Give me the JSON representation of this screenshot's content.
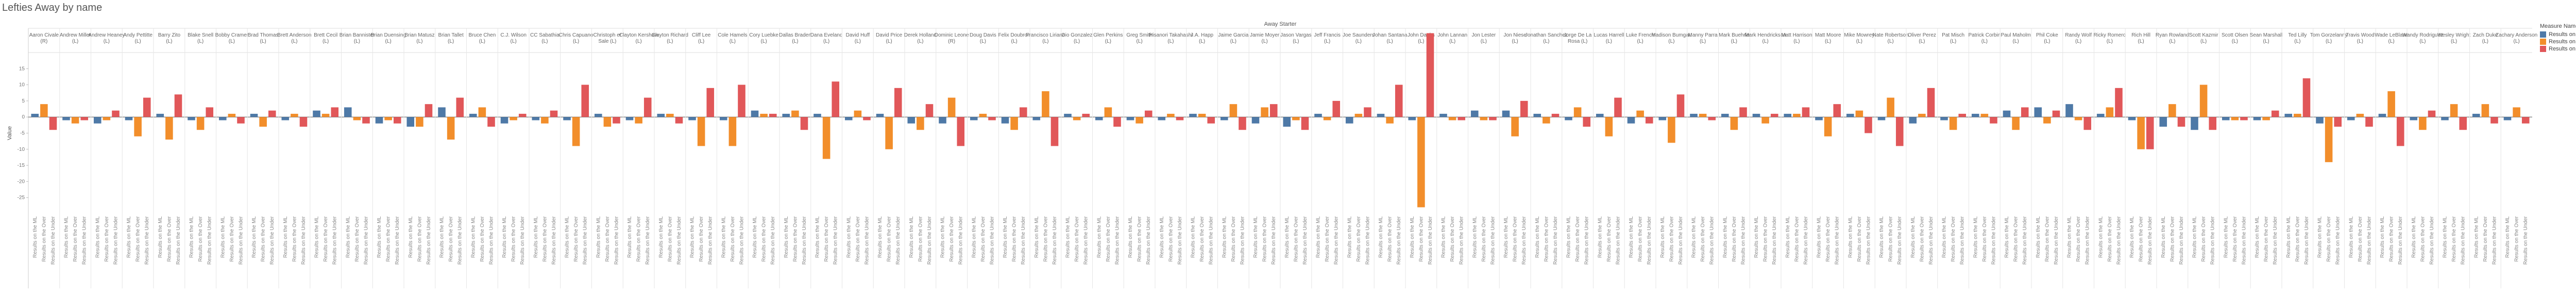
{
  "chart_data": {
    "type": "bar",
    "title": "Lefties Away by name",
    "top_axis_label": "Away Starter",
    "ylabel": "Value",
    "ylim": [
      -30,
      20
    ],
    "y_ticks": [
      -25,
      -20,
      -15,
      -10,
      -5,
      0,
      5,
      10,
      15
    ],
    "grid": false,
    "legend": {
      "title": "Measure Names",
      "placement": "right",
      "entries": [
        {
          "name": "Results on the ML",
          "color": "#4e79a7"
        },
        {
          "name": "Results on the Over",
          "color": "#f28e2b"
        },
        {
          "name": "Results on the Under",
          "color": "#e15759"
        }
      ]
    },
    "x_label_prefix": "Results on the ",
    "categories": [
      {
        "name": "Aaron Civale (R)",
        "bars": [
          1,
          4,
          -4
        ]
      },
      {
        "name": "Andrew Miller (L)",
        "bars": [
          -1,
          -2,
          -1
        ]
      },
      {
        "name": "Andrew Heaney (L)",
        "bars": [
          -2,
          -1,
          2
        ]
      },
      {
        "name": "Andy Pettitte (L)",
        "bars": [
          -1,
          -6,
          6
        ]
      },
      {
        "name": "Barry Zito (L)",
        "bars": [
          1,
          -7,
          7
        ]
      },
      {
        "name": "Blake Snell (L)",
        "bars": [
          -1,
          -4,
          3
        ]
      },
      {
        "name": "Bobby Cramer (L)",
        "bars": [
          -1,
          1,
          -2
        ]
      },
      {
        "name": "Brad Thomas (L)",
        "bars": [
          1,
          -3,
          2
        ]
      },
      {
        "name": "Brett Anderson (L)",
        "bars": [
          -1,
          1,
          -3
        ]
      },
      {
        "name": "Brett Cecil (L)",
        "bars": [
          2,
          1,
          3
        ]
      },
      {
        "name": "Brian Bannister (L)",
        "bars": [
          3,
          -1,
          -2
        ]
      },
      {
        "name": "Brian Duensing (L)",
        "bars": [
          -2,
          -1,
          -2
        ]
      },
      {
        "name": "Brian Matusz (L)",
        "bars": [
          -3,
          -3,
          4
        ]
      },
      {
        "name": "Brian Tallet (L)",
        "bars": [
          3,
          -7,
          6
        ]
      },
      {
        "name": "Bruce Chen (L)",
        "bars": [
          1,
          3,
          -3
        ]
      },
      {
        "name": "C.J. Wilson (L)",
        "bars": [
          -2,
          -1,
          1
        ]
      },
      {
        "name": "CC Sabathia (L)",
        "bars": [
          -1,
          -2,
          2
        ]
      },
      {
        "name": "Chris Capuano (L)",
        "bars": [
          -1,
          -9,
          10
        ]
      },
      {
        "name": "Christoph er Sale (L)",
        "bars": [
          1,
          -3,
          -2
        ]
      },
      {
        "name": "Clayton Kershaw (L)",
        "bars": [
          -1,
          -2,
          6
        ]
      },
      {
        "name": "Clayton Richard (L)",
        "bars": [
          1,
          1,
          -2
        ]
      },
      {
        "name": "Cliff Lee (L)",
        "bars": [
          -1,
          -9,
          9
        ]
      },
      {
        "name": "Cole Hamels (L)",
        "bars": [
          -1,
          -9,
          10
        ]
      },
      {
        "name": "Cory Luebke (L)",
        "bars": [
          2,
          1,
          1
        ]
      },
      {
        "name": "Dallas Braden (L)",
        "bars": [
          1,
          2,
          -4
        ]
      },
      {
        "name": "Dana Eveland (L)",
        "bars": [
          1,
          -13,
          11
        ]
      },
      {
        "name": "David Huff (L)",
        "bars": [
          -1,
          2,
          -1
        ]
      },
      {
        "name": "David Price (L)",
        "bars": [
          1,
          -10,
          9
        ]
      },
      {
        "name": "Derek Holland (L)",
        "bars": [
          -2,
          -4,
          4
        ]
      },
      {
        "name": "Dominic Leone (R)",
        "bars": [
          -2,
          6,
          -9
        ]
      },
      {
        "name": "Doug Davis (L)",
        "bars": [
          -1,
          1,
          -1
        ]
      },
      {
        "name": "Felix Doubron (L)",
        "bars": [
          -2,
          -4,
          3
        ]
      },
      {
        "name": "Francisco Liriano (L)",
        "bars": [
          -1,
          8,
          -9
        ]
      },
      {
        "name": "Gio Gonzalez (L)",
        "bars": [
          1,
          -1,
          1
        ]
      },
      {
        "name": "Glen Perkins (L)",
        "bars": [
          -1,
          3,
          -3
        ]
      },
      {
        "name": "Greg Smith (L)",
        "bars": [
          -1,
          -2,
          2
        ]
      },
      {
        "name": "Hisanori Takahashi (L)",
        "bars": [
          -1,
          1,
          -1
        ]
      },
      {
        "name": "J.A. Happ (L)",
        "bars": [
          1,
          1,
          -2
        ]
      },
      {
        "name": "Jaime Garcia (L)",
        "bars": [
          -1,
          4,
          -4
        ]
      },
      {
        "name": "Jamie Moyer (L)",
        "bars": [
          -2,
          3,
          4
        ]
      },
      {
        "name": "Jason Vargas (L)",
        "bars": [
          -3,
          -1,
          -4
        ]
      },
      {
        "name": "Jeff Francis (L)",
        "bars": [
          1,
          -1,
          5
        ]
      },
      {
        "name": "Joe Saunders (L)",
        "bars": [
          -2,
          1,
          3
        ]
      },
      {
        "name": "Johan Santana (L)",
        "bars": [
          1,
          -2,
          10
        ]
      },
      {
        "name": "John Danks (L)",
        "bars": [
          -1,
          -28,
          26
        ]
      },
      {
        "name": "John Lannan (L)",
        "bars": [
          1,
          -1,
          -1
        ]
      },
      {
        "name": "Jon Lester (L)",
        "bars": [
          2,
          -1,
          -1
        ]
      },
      {
        "name": "Jon Niese (L)",
        "bars": [
          2,
          -6,
          5
        ]
      },
      {
        "name": "Jonathan Sanchez (L)",
        "bars": [
          1,
          -2,
          1
        ]
      },
      {
        "name": "Jorge De La Rosa (L)",
        "bars": [
          -1,
          3,
          -3
        ]
      },
      {
        "name": "Lucas Harrell (L)",
        "bars": [
          1,
          -6,
          6
        ]
      },
      {
        "name": "Luke French (L)",
        "bars": [
          -2,
          2,
          -2
        ]
      },
      {
        "name": "Madison Bumgar. (L)",
        "bars": [
          -1,
          -8,
          7
        ]
      },
      {
        "name": "Manny Parra (L)",
        "bars": [
          1,
          1,
          -1
        ]
      },
      {
        "name": "Mark Buehrle (L)",
        "bars": [
          1,
          -4,
          3
        ]
      },
      {
        "name": "Mark Hendrickson (L)",
        "bars": [
          1,
          -2,
          1
        ]
      },
      {
        "name": "Matt Harrison (L)",
        "bars": [
          1,
          1,
          3
        ]
      },
      {
        "name": "Matt Moore (L)",
        "bars": [
          -1,
          -6,
          4
        ]
      },
      {
        "name": "Mike Mowrey (L)",
        "bars": [
          1,
          2,
          -5
        ]
      },
      {
        "name": "Nate Robertson (L)",
        "bars": [
          -1,
          6,
          -9
        ]
      },
      {
        "name": "Oliver Perez (L)",
        "bars": [
          -2,
          1,
          9
        ]
      },
      {
        "name": "Pat Misch (L)",
        "bars": [
          -1,
          -4,
          1
        ]
      },
      {
        "name": "Patrick Corbin (L)",
        "bars": [
          1,
          1,
          -2
        ]
      },
      {
        "name": "Paul Maholm (L)",
        "bars": [
          2,
          -4,
          3
        ]
      },
      {
        "name": "Phil Coke (L)",
        "bars": [
          3,
          -2,
          2
        ]
      },
      {
        "name": "Randy Wolf (L)",
        "bars": [
          4,
          -1,
          -4
        ]
      },
      {
        "name": "Ricky Romero (L)",
        "bars": [
          1,
          3,
          9
        ]
      },
      {
        "name": "Rich Hill (L)",
        "bars": [
          -1,
          -10,
          -10
        ]
      },
      {
        "name": "Ryan Rowland (L)",
        "bars": [
          -3,
          4,
          -3
        ]
      },
      {
        "name": "Scott Kazmir (L)",
        "bars": [
          -4,
          10,
          -4
        ]
      },
      {
        "name": "Scott Olsen (L)",
        "bars": [
          -1,
          -1,
          -1
        ]
      },
      {
        "name": "Sean Marshall (L)",
        "bars": [
          -1,
          -1,
          2
        ]
      },
      {
        "name": "Ted Lilly (L)",
        "bars": [
          1,
          1,
          12
        ]
      },
      {
        "name": "Tom Gorzelanny (L)",
        "bars": [
          -2,
          -14,
          -3
        ]
      },
      {
        "name": "Travis Wood (L)",
        "bars": [
          -1,
          1,
          -3
        ]
      },
      {
        "name": "Wade LeBlanc (L)",
        "bars": [
          1,
          8,
          -9
        ]
      },
      {
        "name": "Wandy Rodriguez (L)",
        "bars": [
          -1,
          -4,
          2
        ]
      },
      {
        "name": "Wesley Wright (L)",
        "bars": [
          -1,
          4,
          -4
        ]
      },
      {
        "name": "Zach Duke (L)",
        "bars": [
          1,
          4,
          -2
        ]
      },
      {
        "name": "Zachary Anderson (L)",
        "bars": [
          -1,
          3,
          -2
        ]
      }
    ]
  }
}
